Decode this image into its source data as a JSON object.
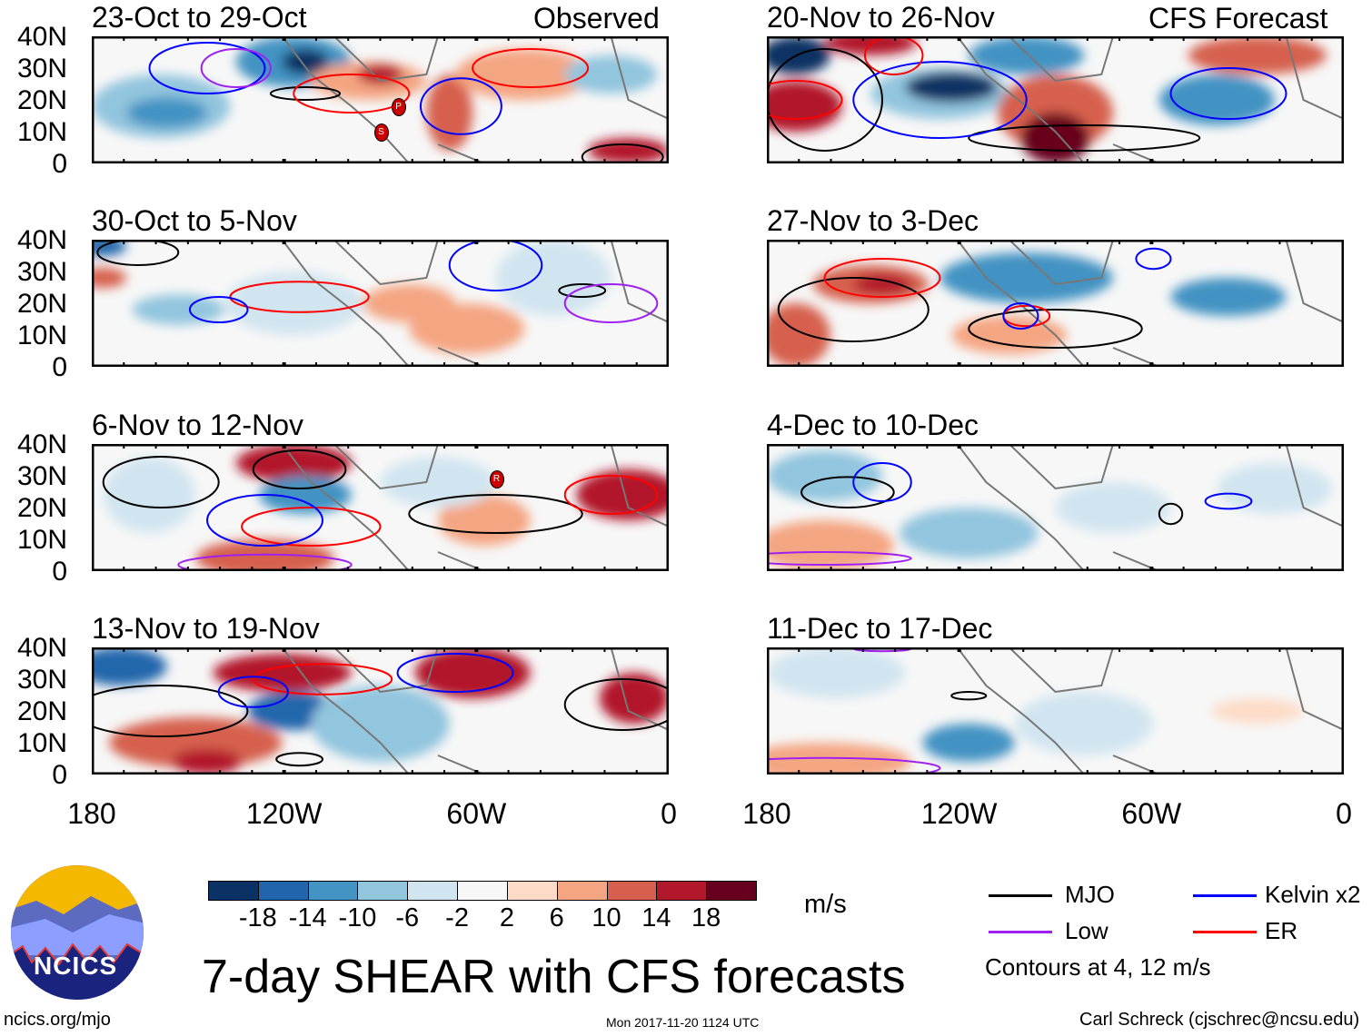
{
  "header": {
    "observed_label": "Observed",
    "forecast_label": "CFS Forecast"
  },
  "panels": [
    {
      "title": "23-Oct to 29-Oct",
      "storms": [
        "P",
        "S"
      ]
    },
    {
      "title": "30-Oct to 5-Nov",
      "storms": []
    },
    {
      "title": "6-Nov to 12-Nov",
      "storms": [
        "R"
      ]
    },
    {
      "title": "13-Nov to 19-Nov",
      "storms": []
    },
    {
      "title": "20-Nov to 26-Nov",
      "storms": []
    },
    {
      "title": "27-Nov to 3-Dec",
      "storms": []
    },
    {
      "title": "4-Dec to 10-Dec",
      "storms": []
    },
    {
      "title": "11-Dec to 17-Dec",
      "storms": []
    }
  ],
  "y_ticks": [
    "40N",
    "30N",
    "20N",
    "10N",
    "0"
  ],
  "x_ticks": [
    "180",
    "120W",
    "60W",
    "0"
  ],
  "colorbar": {
    "colors": [
      "#0b3264",
      "#2166ac",
      "#4393c3",
      "#92c5de",
      "#d1e5f0",
      "#f7f7f7",
      "#fddbc7",
      "#f4a582",
      "#d6604d",
      "#b2182b",
      "#67001f"
    ],
    "labels": [
      "-18",
      "-14",
      "-10",
      "-6",
      "-2",
      "2",
      "6",
      "10",
      "14",
      "18"
    ],
    "units": "m/s"
  },
  "legend": {
    "items": [
      {
        "label": "MJO",
        "color": "#000000"
      },
      {
        "label": "Kelvin x2",
        "color": "#0000ff"
      },
      {
        "label": "Low",
        "color": "#a020f0"
      },
      {
        "label": "ER",
        "color": "#ff0000"
      }
    ],
    "note": "Contours at 4, 12 m/s"
  },
  "title": "7-day SHEAR with CFS forecasts",
  "logo_text": "NCICS",
  "footer": {
    "url": "ncics.org/mjo",
    "timestamp": "Mon 2017-11-20 1124 UTC",
    "credit": "Carl Schreck (cjschrec@ncsu.edu)"
  }
}
